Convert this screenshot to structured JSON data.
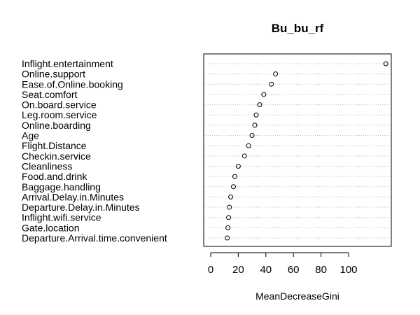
{
  "chart_data": {
    "type": "scatter",
    "title": "Bu_bu_rf",
    "xlabel": "MeanDecreaseGini",
    "ylabel": "",
    "xlim": [
      -4,
      130
    ],
    "xticks": [
      "0",
      "20",
      "40",
      "60",
      "80",
      "100"
    ],
    "grid": "horizontal-dotted",
    "categories": [
      "Inflight.entertainment",
      "Online.support",
      "Ease.of.Online.booking",
      "Seat.comfort",
      "On.board.service",
      "Leg.room.service",
      "Online.boarding",
      "Age",
      "Flight.Distance",
      "Checkin.service",
      "Cleanliness",
      "Food.and.drink",
      "Baggage.handling",
      "Arrival.Delay.in.Minutes",
      "Departure.Delay.in.Minutes",
      "Inflight.wifi.service",
      "Gate.location",
      "Departure.Arrival.time.convenient"
    ],
    "values": [
      127,
      47,
      44,
      38.5,
      35.5,
      33,
      32,
      30,
      27.5,
      24.5,
      20,
      17.5,
      16.5,
      14.5,
      13.5,
      13,
      12.5,
      12
    ]
  }
}
